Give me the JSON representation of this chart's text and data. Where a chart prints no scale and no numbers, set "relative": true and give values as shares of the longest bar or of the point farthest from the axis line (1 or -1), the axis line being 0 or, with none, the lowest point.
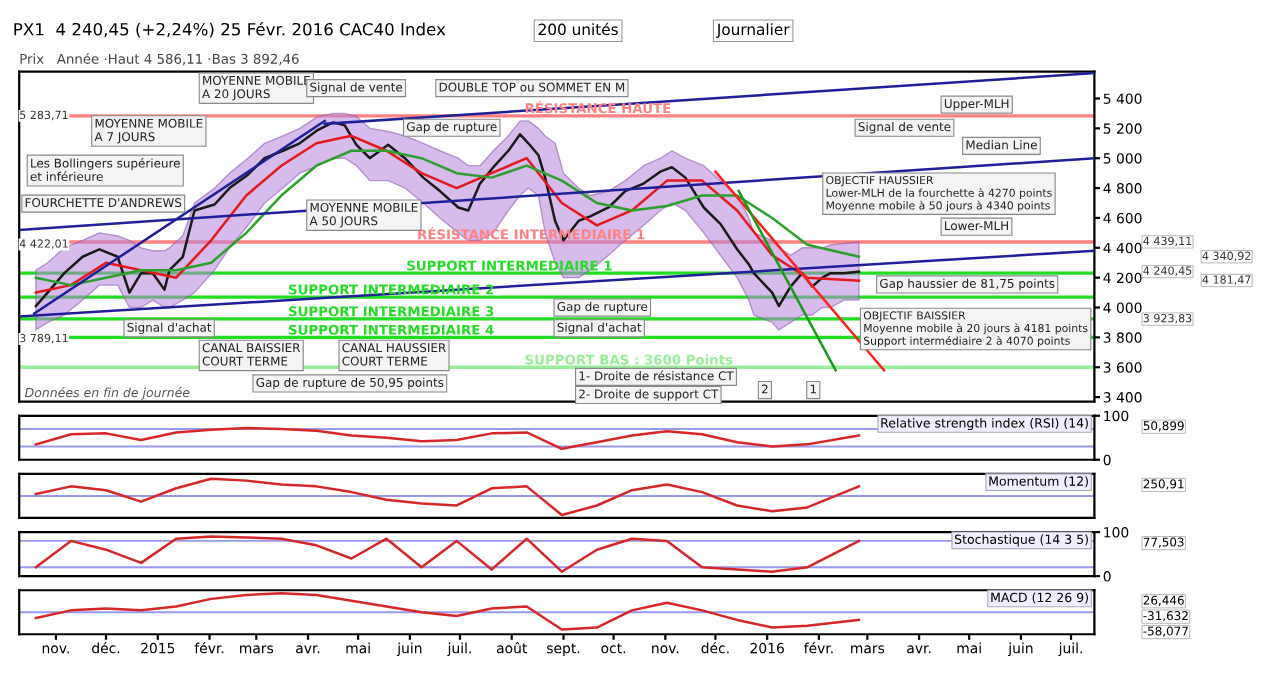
{
  "chart_data": [
    {
      "type": "line",
      "title": "PX1  4 240,45 (+2,24%) 25 Févr. 2016 CAC40 Index",
      "subtitle": "Prix   Année ·Haut 4 586,11 ·Bas 3 892,46",
      "xlim": [
        "2014-10-10",
        "2016-07-15"
      ],
      "ylim": [
        3370,
        5580
      ],
      "yticks": [
        {
          "value": 3400,
          "label": "3 400"
        },
        {
          "value": 3600,
          "label": "3 600"
        },
        {
          "value": 3800,
          "label": "3 800"
        },
        {
          "value": 4000,
          "label": "4 000"
        },
        {
          "value": 4200,
          "label": "4 200"
        },
        {
          "value": 4400,
          "label": "4 400"
        },
        {
          "value": 4600,
          "label": "4 600"
        },
        {
          "value": 4800,
          "label": "4 800"
        },
        {
          "value": 5000,
          "label": "5 000"
        },
        {
          "value": 5200,
          "label": "5 200"
        },
        {
          "value": 5400,
          "label": "5 400"
        }
      ],
      "tick_labels": "y",
      "grid": false,
      "series": [
        {
          "color": "#1a1a1a",
          "x": [
            "2014-10-20",
            "2014-10-27",
            "2014-11-06",
            "2014-11-17",
            "2014-11-27",
            "2014-12-08",
            "2014-12-15",
            "2014-12-22",
            "2014-12-29",
            "2015-01-05",
            "2015-01-08",
            "2015-01-16",
            "2015-01-23",
            "2015-02-04",
            "2015-02-13",
            "2015-02-24",
            "2015-03-06",
            "2015-03-17",
            "2015-03-27",
            "2015-04-07",
            "2015-04-16",
            "2015-04-23",
            "2015-04-30",
            "2015-05-08",
            "2015-05-19",
            "2015-05-29",
            "2015-06-09",
            "2015-06-19",
            "2015-06-30",
            "2015-07-06",
            "2015-07-13",
            "2015-07-21",
            "2015-07-30",
            "2015-08-06",
            "2015-08-11",
            "2015-08-17",
            "2015-08-21",
            "2015-08-27",
            "2015-09-01",
            "2015-09-10",
            "2015-09-17",
            "2015-09-28",
            "2015-10-08",
            "2015-10-19",
            "2015-10-29",
            "2015-11-05",
            "2015-11-13",
            "2015-11-24",
            "2015-12-04",
            "2015-12-14",
            "2015-12-21",
            "2015-12-24",
            "2016-01-04",
            "2016-01-08",
            "2016-01-15",
            "2016-01-22",
            "2016-01-28",
            "2016-02-03",
            "2016-02-08",
            "2016-02-16",
            "2016-02-25"
          ],
          "values": [
            4010,
            4100,
            4230,
            4340,
            4390,
            4340,
            4100,
            4230,
            4230,
            4120,
            4250,
            4340,
            4650,
            4690,
            4800,
            4890,
            5000,
            5050,
            5100,
            5190,
            5240,
            5220,
            5090,
            5000,
            5090,
            5000,
            4870,
            4780,
            4670,
            4650,
            4830,
            4940,
            5050,
            5160,
            5100,
            5020,
            4870,
            4580,
            4450,
            4580,
            4610,
            4670,
            4780,
            4830,
            4910,
            4940,
            4870,
            4670,
            4560,
            4390,
            4290,
            4230,
            4100,
            4010,
            4140,
            4230,
            4140,
            4200,
            4230,
            4230,
            4240.45
          ],
          "upper": [
            4250,
            4300,
            4400,
            4450,
            4500,
            4480,
            4450,
            4400,
            4380,
            4380,
            4400,
            4480,
            4700,
            4800,
            4900,
            5000,
            5100,
            5150,
            5200,
            5280,
            5300,
            5300,
            5280,
            5200,
            5180,
            5150,
            5100,
            5050,
            5000,
            4950,
            4950,
            5050,
            5150,
            5250,
            5250,
            5200,
            5150,
            5100,
            4900,
            4800,
            4750,
            4780,
            4850,
            4950,
            5000,
            5050,
            5000,
            4950,
            4850,
            4750,
            4600,
            4500,
            4450,
            4400,
            4350,
            4400,
            4400,
            4400,
            4420,
            4430,
            4440
          ],
          "lower": [
            3850,
            3900,
            3950,
            4050,
            4150,
            4150,
            4000,
            4000,
            4050,
            4000,
            4000,
            4050,
            4100,
            4250,
            4400,
            4550,
            4700,
            4800,
            4900,
            4950,
            5000,
            5000,
            4950,
            4850,
            4850,
            4800,
            4700,
            4600,
            4500,
            4450,
            4450,
            4500,
            4650,
            4750,
            4800,
            4750,
            4500,
            4300,
            4200,
            4200,
            4250,
            4350,
            4450,
            4550,
            4650,
            4700,
            4650,
            4500,
            4350,
            4200,
            4050,
            3950,
            3900,
            3850,
            3900,
            3950,
            3950,
            4000,
            4000,
            4050,
            4050
          ]
        },
        {
          "color": "#e31a1c",
          "x": [
            "2014-10-20",
            "2014-11-10",
            "2014-12-01",
            "2014-12-22",
            "2015-01-12",
            "2015-02-02",
            "2015-02-23",
            "2015-03-16",
            "2015-04-06",
            "2015-04-27",
            "2015-05-18",
            "2015-06-08",
            "2015-06-29",
            "2015-07-20",
            "2015-08-10",
            "2015-08-31",
            "2015-09-21",
            "2015-10-12",
            "2015-11-02",
            "2015-11-23",
            "2015-12-14",
            "2016-01-04",
            "2016-01-25",
            "2016-02-25"
          ],
          "values": [
            4100,
            4150,
            4300,
            4250,
            4200,
            4450,
            4750,
            4950,
            5100,
            5150,
            5050,
            4900,
            4800,
            4900,
            5000,
            4700,
            4550,
            4650,
            4850,
            4850,
            4650,
            4350,
            4200,
            4180
          ]
        },
        {
          "color": "#2ca02c",
          "x": [
            "2014-10-20",
            "2014-11-10",
            "2014-12-01",
            "2014-12-22",
            "2015-01-12",
            "2015-02-02",
            "2015-02-23",
            "2015-03-16",
            "2015-04-06",
            "2015-04-27",
            "2015-05-18",
            "2015-06-08",
            "2015-06-29",
            "2015-07-20",
            "2015-08-10",
            "2015-08-31",
            "2015-09-21",
            "2015-10-12",
            "2015-11-02",
            "2015-11-23",
            "2015-12-14",
            "2016-01-04",
            "2016-01-25",
            "2016-02-25"
          ],
          "values": [
            4200,
            4150,
            4200,
            4250,
            4250,
            4300,
            4500,
            4750,
            4950,
            5050,
            5050,
            5000,
            4900,
            4870,
            4950,
            4850,
            4700,
            4650,
            4680,
            4750,
            4750,
            4600,
            4420,
            4340
          ]
        },
        {
          "color": "#1f1f9a",
          "x": [
            "2015-04-11",
            "2016-07-15"
          ],
          "values": [
            5230,
            5570
          ]
        },
        {
          "color": "#1f1f9a",
          "x": [
            "2014-10-10",
            "2016-07-15"
          ],
          "values": [
            4520,
            5000
          ]
        },
        {
          "color": "#1f1f9a",
          "x": [
            "2014-10-10",
            "2016-07-15"
          ],
          "values": [
            3940,
            4380
          ]
        },
        {
          "color": "#1f1f9a",
          "x": [
            "2014-10-19",
            "2015-04-11"
          ],
          "values": [
            3960,
            5250
          ]
        },
        {
          "color": "#ff2020",
          "x": [
            "2015-12-01",
            "2016-03-11"
          ],
          "values": [
            4910,
            3580
          ]
        },
        {
          "color": "#1a9a1a",
          "x": [
            "2015-12-15",
            "2016-02-11"
          ],
          "values": [
            4780,
            3580
          ]
        }
      ],
      "ref_lines": [
        {
          "axis": "y",
          "value": 5283.71,
          "label": "RÉSISTANCE HAUTE",
          "color": "#ff8080"
        },
        {
          "axis": "y",
          "value": 4439.11,
          "label": "RÉSISTANCE INTERMEDIAIRE 1",
          "color": "#ff8080"
        },
        {
          "axis": "y",
          "value": 4230,
          "label": "SUPPORT INTERMEDIAIRE 1",
          "color": "#22dd22"
        },
        {
          "axis": "y",
          "value": 4070,
          "label": "SUPPORT INTERMEDIAIRE 2",
          "color": "#22dd22"
        },
        {
          "axis": "y",
          "value": 3923.83,
          "label": "SUPPORT INTERMEDIAIRE 3",
          "color": "#22dd22"
        },
        {
          "axis": "y",
          "value": 3800,
          "label": "SUPPORT INTERMEDIAIRE 4",
          "color": "#22dd22"
        },
        {
          "axis": "y",
          "value": 3600,
          "label": "SUPPORT BAS : 3600 Points",
          "color": "#99ee99"
        }
      ],
      "annotations": [
        "200 unités",
        "Journalier",
        "Données en fin de journée",
        "MOYENNE MOBILE\nA 20 JOURS",
        "MOYENNE MOBILE\nA 7 JOURS",
        "Les Bollingers supérieure\net inférieure",
        "FOURCHETTE D'ANDREWS",
        "MOYENNE MOBILE\nA 50 JOURS",
        "Signal d'achat",
        "Signal de vente",
        "Gap de rupture",
        "DOUBLE TOP ou SOMMET EN M",
        "Signal de vente",
        "CANAL BAISSIER\nCOURT TERME",
        "Gap de rupture de 50,95 points",
        "Signal d'achat",
        "Gap de rupture",
        "CANAL HAUSSIER\nCOURT TERME",
        "Gap haussier de 81,75 points",
        "OBJECTIF HAUSSIER\nLower-MLH de la fourchette à 4270 points\nMoyenne mobile à 50 jours à 4340 points",
        "Upper-MLH",
        "Median Line",
        "Lower-MLH",
        "OBJECTIF BAISSIER\nMoyenne mobile à 20 jours à 4181 points\nSupport intermédiaire 2 à 4070 points",
        "1- Droite de résistance CT",
        "2- Droite de support CT",
        "1",
        "2",
        "4 439,11",
        "4 340,92",
        "4 240,45",
        "4 181,47",
        "3 923,83",
        {
          "text": "5 283,71",
          "x": "2014-10-10",
          "y": 5283.71
        },
        {
          "text": "4 422,01",
          "x": "2014-10-10",
          "y": 4422.01
        },
        {
          "text": "3 789,11",
          "x": "2014-10-10",
          "y": 3789.11
        }
      ]
    },
    {
      "type": "line",
      "title": "Relative strength index (RSI) (14)",
      "xlim": [
        "2014-10-10",
        "2016-07-15"
      ],
      "ylim": [
        0,
        100
      ],
      "yticks": [
        0,
        100
      ],
      "tick_labels": "y",
      "grid": false,
      "x": [
        "2014-10-20",
        "2014-11-10",
        "2014-12-01",
        "2014-12-22",
        "2015-01-12",
        "2015-02-02",
        "2015-02-23",
        "2015-03-16",
        "2015-04-06",
        "2015-04-27",
        "2015-05-18",
        "2015-06-08",
        "2015-06-29",
        "2015-07-20",
        "2015-08-10",
        "2015-08-31",
        "2015-09-21",
        "2015-10-12",
        "2015-11-02",
        "2015-11-23",
        "2015-12-14",
        "2016-01-04",
        "2016-01-25",
        "2016-02-25"
      ],
      "series": [
        {
          "color": "#d62728",
          "values": [
            35,
            58,
            60,
            45,
            62,
            68,
            72,
            70,
            66,
            55,
            50,
            42,
            45,
            60,
            62,
            25,
            40,
            55,
            65,
            58,
            40,
            30,
            35,
            55
          ]
        }
      ],
      "ref_lines": [
        {
          "axis": "y",
          "value": 70,
          "color": "#9999ee"
        },
        {
          "axis": "y",
          "value": 30,
          "color": "#9999ee"
        }
      ],
      "annotations": [
        "50,899"
      ]
    },
    {
      "type": "line",
      "title": "Momentum (12)",
      "relative": true,
      "xlim": [
        "2014-10-10",
        "2016-07-15"
      ],
      "tick_labels": false,
      "grid": false,
      "x": [
        "2014-10-20",
        "2014-11-10",
        "2014-12-01",
        "2014-12-22",
        "2015-01-12",
        "2015-02-02",
        "2015-02-23",
        "2015-03-16",
        "2015-04-06",
        "2015-04-27",
        "2015-05-18",
        "2015-06-08",
        "2015-06-29",
        "2015-07-20",
        "2015-08-10",
        "2015-08-31",
        "2015-09-21",
        "2015-10-12",
        "2015-11-02",
        "2015-11-23",
        "2015-12-14",
        "2016-01-04",
        "2016-01-25",
        "2016-02-25"
      ],
      "series": [
        {
          "color": "#d62728",
          "values": [
            0.1,
            0.5,
            0.3,
            -0.3,
            0.4,
            0.9,
            0.8,
            0.6,
            0.5,
            0.2,
            -0.2,
            -0.4,
            -0.5,
            0.4,
            0.5,
            -1,
            -0.5,
            0.3,
            0.6,
            0.2,
            -0.5,
            -0.8,
            -0.6,
            0.5
          ]
        }
      ],
      "ref_lines": [
        {
          "axis": "y",
          "value": 0,
          "color": "#9999ee"
        }
      ],
      "annotations": [
        "250,91"
      ]
    },
    {
      "type": "line",
      "title": "Stochastique (14 3 5)",
      "xlim": [
        "2014-10-10",
        "2016-07-15"
      ],
      "ylim": [
        0,
        100
      ],
      "yticks": [
        0,
        100
      ],
      "tick_labels": "y",
      "grid": false,
      "x": [
        "2014-10-20",
        "2014-11-10",
        "2014-12-01",
        "2014-12-22",
        "2015-01-12",
        "2015-02-02",
        "2015-02-23",
        "2015-03-16",
        "2015-04-06",
        "2015-04-27",
        "2015-05-18",
        "2015-06-08",
        "2015-06-29",
        "2015-07-20",
        "2015-08-10",
        "2015-08-31",
        "2015-09-21",
        "2015-10-12",
        "2015-11-02",
        "2015-11-23",
        "2015-12-14",
        "2016-01-04",
        "2016-01-25",
        "2016-02-25"
      ],
      "series": [
        {
          "color": "#d62728",
          "values": [
            20,
            80,
            60,
            30,
            85,
            90,
            88,
            85,
            70,
            40,
            85,
            20,
            80,
            15,
            85,
            10,
            60,
            85,
            80,
            20,
            15,
            10,
            20,
            80
          ]
        }
      ],
      "ref_lines": [
        {
          "axis": "y",
          "value": 80,
          "color": "#9999ee"
        },
        {
          "axis": "y",
          "value": 20,
          "color": "#9999ee"
        }
      ],
      "annotations": [
        "77,503"
      ]
    },
    {
      "type": "line",
      "title": "MACD (12 26 9)",
      "relative": true,
      "xlim": [
        "2014-10-10",
        "2016-07-15"
      ],
      "tick_labels": "x",
      "grid": false,
      "xticks": [
        {
          "value": "2014-11-01",
          "label": "nov."
        },
        {
          "value": "2014-12-01",
          "label": "déc."
        },
        {
          "value": "2015-01-01",
          "label": "2015"
        },
        {
          "value": "2015-02-01",
          "label": "févr."
        },
        {
          "value": "2015-03-01",
          "label": "mars"
        },
        {
          "value": "2015-04-01",
          "label": "avr."
        },
        {
          "value": "2015-05-01",
          "label": "mai"
        },
        {
          "value": "2015-06-01",
          "label": "juin"
        },
        {
          "value": "2015-07-01",
          "label": "juil."
        },
        {
          "value": "2015-08-01",
          "label": "août"
        },
        {
          "value": "2015-09-01",
          "label": "sept."
        },
        {
          "value": "2015-10-01",
          "label": "oct."
        },
        {
          "value": "2015-11-01",
          "label": "nov."
        },
        {
          "value": "2015-12-01",
          "label": "déc."
        },
        {
          "value": "2016-01-01",
          "label": "2016"
        },
        {
          "value": "2016-02-01",
          "label": "févr."
        },
        {
          "value": "2016-03-01",
          "label": "mars"
        },
        {
          "value": "2016-04-01",
          "label": "avr."
        },
        {
          "value": "2016-05-01",
          "label": "mai"
        },
        {
          "value": "2016-06-01",
          "label": "juin"
        },
        {
          "value": "2016-07-01",
          "label": "juil."
        }
      ],
      "x": [
        "2014-10-20",
        "2014-11-10",
        "2014-12-01",
        "2014-12-22",
        "2015-01-12",
        "2015-02-02",
        "2015-02-23",
        "2015-03-16",
        "2015-04-06",
        "2015-04-27",
        "2015-05-18",
        "2015-06-08",
        "2015-06-29",
        "2015-07-20",
        "2015-08-10",
        "2015-08-31",
        "2015-09-21",
        "2015-10-12",
        "2015-11-02",
        "2015-11-23",
        "2015-12-14",
        "2016-01-04",
        "2016-01-25",
        "2016-02-25"
      ],
      "series": [
        {
          "color": "#d62728",
          "values": [
            -0.3,
            0.1,
            0.2,
            0.1,
            0.3,
            0.7,
            0.9,
            1,
            0.9,
            0.6,
            0.3,
            0.0,
            -0.2,
            0.2,
            0.3,
            -0.9,
            -0.8,
            0.1,
            0.5,
            0.1,
            -0.4,
            -0.8,
            -0.7,
            -0.4
          ]
        }
      ],
      "ref_lines": [
        {
          "axis": "y",
          "value": 0,
          "color": "#9999ee"
        }
      ],
      "annotations": [
        "26,446",
        "-31,632",
        "-58,077"
      ]
    }
  ]
}
